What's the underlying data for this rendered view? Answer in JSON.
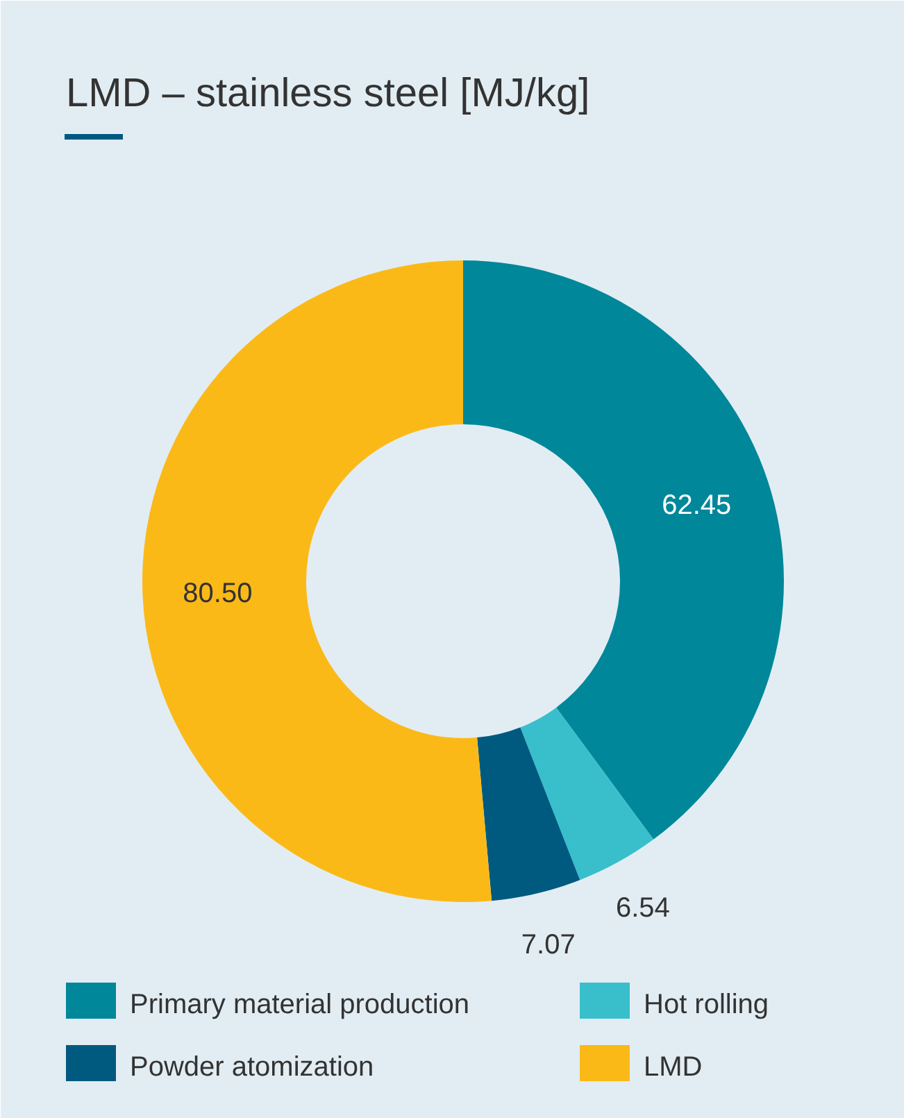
{
  "chart_data": {
    "type": "donut",
    "title": "LMD – stainless steel [MJ/kg]",
    "categories": [
      "Primary material production",
      "Hot rolling",
      "Powder atomization",
      "LMD"
    ],
    "values": [
      62.45,
      6.54,
      7.07,
      80.5
    ],
    "value_labels": [
      "62.45",
      "6.54",
      "7.07",
      "80.50"
    ],
    "colors": [
      "#00879a",
      "#38bfcb",
      "#005a80",
      "#fbb918"
    ],
    "legend": "bottom"
  }
}
